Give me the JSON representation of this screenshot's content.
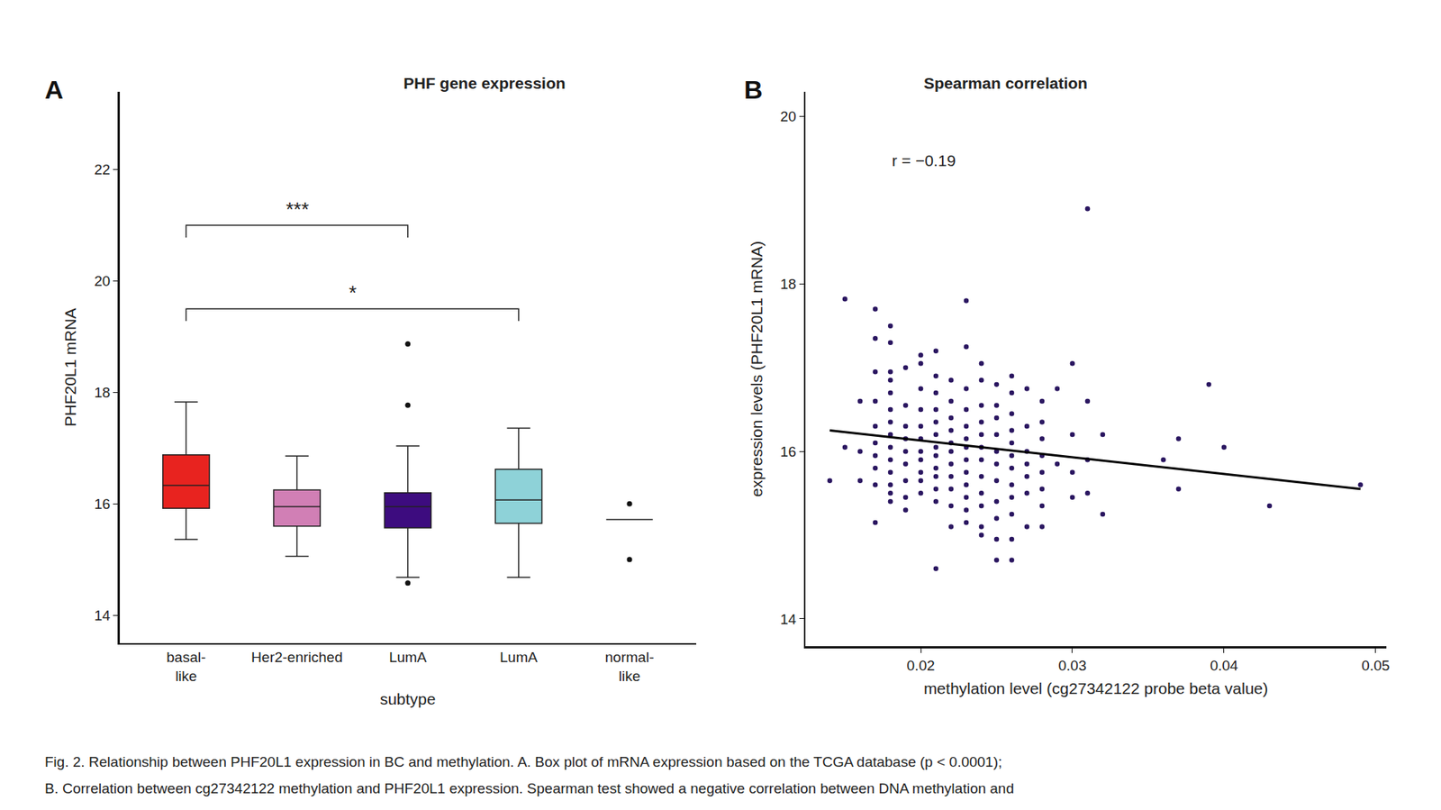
{
  "caption": [
    "Fig. 2. Relationship between PHF20L1 expression in BC and methylation. A. Box plot of mRNA expression based on the TCGA database (p < 0.0001);",
    "B. Correlation between cg27342122 methylation and PHF20L1 expression. Spearman test showed a negative correlation between DNA methylation and"
  ],
  "chart_data": [
    {
      "label": "A",
      "type": "box",
      "title": "PHF gene expression",
      "x_label": "subtype",
      "y_label": "PHF20L1 mRNA",
      "categories": [
        "basal-\nlike",
        "Her2-enriched",
        "LumA",
        "LumA",
        "normal-\nlike"
      ],
      "boxes": {
        "lower_whisker": [
          15.36,
          15.06,
          14.68,
          14.68,
          15.72
        ],
        "q1": [
          15.92,
          15.6,
          15.57,
          15.65,
          15.72
        ],
        "median": [
          16.33,
          15.95,
          15.95,
          16.07,
          15.72
        ],
        "q3": [
          16.88,
          16.25,
          16.2,
          16.62,
          15.72
        ],
        "upper_whisker": [
          17.83,
          16.86,
          17.04,
          17.36,
          15.72
        ]
      },
      "outliers": [
        [],
        [],
        [
          18.87,
          17.77,
          14.58
        ],
        [],
        [
          16.0,
          15.0
        ]
      ],
      "colors": [
        "#e8231f",
        "#d17fb5",
        "#3d0c7f",
        "#8ed2d8",
        "#ffffff"
      ],
      "comparisons": [
        {
          "from": 0,
          "to": 2,
          "y": 21.0,
          "label": "***"
        },
        {
          "from": 0,
          "to": 3,
          "y": 19.5,
          "label": "*"
        }
      ],
      "ylim": [
        13.5,
        23.4
      ],
      "yticks": [
        14,
        16,
        18,
        20,
        22
      ],
      "grid": false
    },
    {
      "label": "B",
      "type": "scatter",
      "title": "Spearman correlation",
      "x_label": "methylation level (cg27342122 probe beta value)",
      "y_label": "expression levels (PHF20L1 mRNA)",
      "x": [
        0.014,
        0.015,
        0.015,
        0.016,
        0.016,
        0.016,
        0.017,
        0.017,
        0.017,
        0.017,
        0.017,
        0.017,
        0.017,
        0.017,
        0.017,
        0.017,
        0.018,
        0.018,
        0.018,
        0.018,
        0.018,
        0.018,
        0.018,
        0.018,
        0.018,
        0.018,
        0.018,
        0.018,
        0.018,
        0.018,
        0.019,
        0.019,
        0.019,
        0.019,
        0.019,
        0.019,
        0.019,
        0.019,
        0.019,
        0.02,
        0.02,
        0.02,
        0.02,
        0.02,
        0.02,
        0.02,
        0.02,
        0.02,
        0.02,
        0.02,
        0.021,
        0.021,
        0.021,
        0.021,
        0.021,
        0.021,
        0.021,
        0.021,
        0.021,
        0.021,
        0.021,
        0.021,
        0.021,
        0.022,
        0.022,
        0.022,
        0.022,
        0.022,
        0.022,
        0.022,
        0.022,
        0.022,
        0.022,
        0.022,
        0.023,
        0.023,
        0.023,
        0.023,
        0.023,
        0.023,
        0.023,
        0.023,
        0.023,
        0.023,
        0.023,
        0.023,
        0.023,
        0.024,
        0.024,
        0.024,
        0.024,
        0.024,
        0.024,
        0.024,
        0.024,
        0.024,
        0.024,
        0.024,
        0.024,
        0.025,
        0.025,
        0.025,
        0.025,
        0.025,
        0.025,
        0.025,
        0.025,
        0.025,
        0.025,
        0.025,
        0.026,
        0.026,
        0.026,
        0.026,
        0.026,
        0.026,
        0.026,
        0.026,
        0.026,
        0.026,
        0.026,
        0.026,
        0.027,
        0.027,
        0.027,
        0.027,
        0.027,
        0.027,
        0.027,
        0.028,
        0.028,
        0.028,
        0.028,
        0.028,
        0.028,
        0.028,
        0.028,
        0.029,
        0.029,
        0.03,
        0.03,
        0.03,
        0.03,
        0.031,
        0.031,
        0.031,
        0.031,
        0.032,
        0.032,
        0.036,
        0.037,
        0.037,
        0.039,
        0.04,
        0.043,
        0.049
      ],
      "values": [
        15.65,
        17.82,
        16.05,
        16.6,
        16.0,
        15.65,
        17.7,
        17.35,
        16.95,
        16.6,
        16.3,
        16.1,
        15.95,
        15.8,
        15.6,
        15.15,
        17.5,
        17.3,
        16.95,
        16.85,
        16.7,
        16.5,
        16.35,
        16.2,
        16.05,
        15.9,
        15.75,
        15.6,
        15.5,
        15.4,
        17.0,
        16.55,
        16.3,
        16.15,
        16.0,
        15.85,
        15.65,
        15.45,
        15.3,
        17.15,
        17.05,
        16.75,
        16.5,
        16.3,
        16.15,
        16.0,
        15.9,
        15.75,
        15.65,
        15.5,
        17.2,
        16.9,
        16.7,
        16.5,
        16.35,
        16.2,
        16.05,
        15.95,
        15.8,
        15.7,
        15.55,
        15.4,
        14.6,
        16.85,
        16.6,
        16.4,
        16.25,
        16.1,
        16.0,
        15.85,
        15.7,
        15.55,
        15.35,
        15.1,
        17.8,
        17.25,
        16.75,
        16.5,
        16.3,
        16.15,
        16.05,
        15.9,
        15.75,
        15.6,
        15.45,
        15.3,
        15.15,
        17.05,
        16.85,
        16.55,
        16.35,
        16.2,
        16.05,
        15.9,
        15.7,
        15.5,
        15.35,
        15.1,
        15.0,
        16.8,
        16.55,
        16.4,
        16.2,
        16.0,
        15.85,
        15.65,
        15.4,
        15.2,
        14.95,
        14.7,
        16.9,
        16.7,
        16.45,
        16.25,
        16.1,
        15.95,
        15.8,
        15.6,
        15.45,
        15.25,
        14.95,
        14.7,
        16.75,
        16.3,
        16.0,
        15.85,
        15.7,
        15.5,
        15.1,
        16.6,
        16.35,
        16.15,
        15.95,
        15.75,
        15.55,
        15.35,
        15.1,
        16.75,
        15.85,
        17.05,
        16.2,
        15.75,
        15.45,
        18.9,
        16.6,
        15.9,
        15.5,
        16.2,
        15.25,
        15.9,
        16.15,
        15.55,
        16.8,
        16.05,
        15.35,
        15.6
      ],
      "color": "#2a1660",
      "trend": {
        "x": [
          0.014,
          0.049
        ],
        "values": [
          16.25,
          15.55
        ]
      },
      "annotations": [
        {
          "text": "r = −0.19",
          "x": 0.0202,
          "y": 19.48
        }
      ],
      "xlim": [
        0.0124,
        0.0507
      ],
      "xticks": [
        0.02,
        0.03,
        0.04,
        0.05
      ],
      "ylim": [
        13.67,
        20.3
      ],
      "yticks": [
        14,
        16,
        18,
        20
      ],
      "grid": false
    }
  ]
}
